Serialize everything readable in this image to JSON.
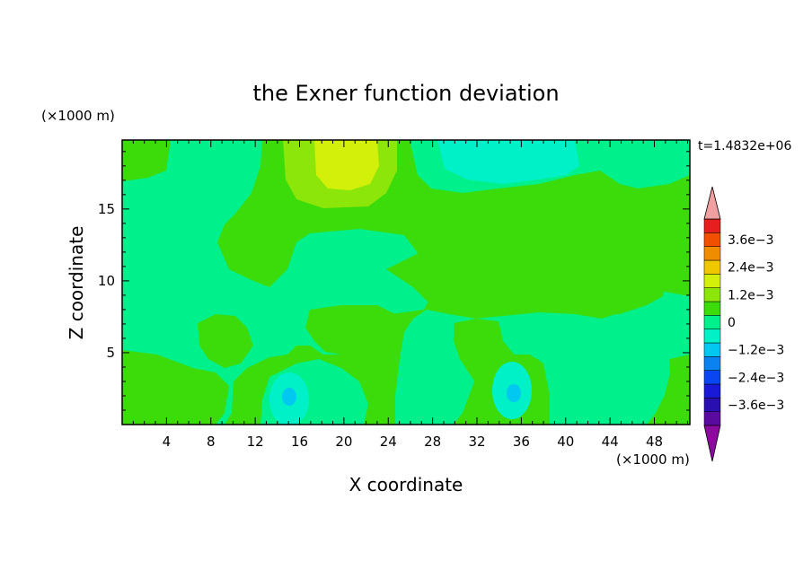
{
  "chart_data": {
    "type": "heatmap",
    "title": "the Exner function deviation",
    "xlabel": "X coordinate",
    "ylabel": "Z coordinate",
    "x_unit": "(×1000 m)",
    "y_unit": "(×1000 m)",
    "time_label": "t=1.4832e+06",
    "xlim": [
      0,
      51.2
    ],
    "ylim": [
      0,
      19.8
    ],
    "x_ticks": [
      4,
      8,
      12,
      16,
      20,
      24,
      28,
      32,
      36,
      40,
      44,
      48
    ],
    "y_ticks": [
      5,
      10,
      15
    ],
    "colorbar": {
      "labels": [
        "3.6e−3",
        "2.4e−3",
        "1.2e−3",
        "0",
        "−1.2e−3",
        "−2.4e−3",
        "−3.6e−3"
      ],
      "levels": [
        -0.0042,
        -0.0036,
        -0.003,
        -0.0024,
        -0.0018,
        -0.0012,
        -0.0006,
        0,
        0.0006,
        0.0012,
        0.0018,
        0.0024,
        0.003,
        0.0036,
        0.0042
      ],
      "colors": [
        "#5a0a9e",
        "#2a0fb0",
        "#1a1ad6",
        "#0a46f0",
        "#0a82f0",
        "#00c8f0",
        "#00f0c8",
        "#00f08c",
        "#3cdc0a",
        "#8ce60a",
        "#d2f00a",
        "#f0c800",
        "#f08c00",
        "#f05000",
        "#e61e1e"
      ],
      "under_color": "#8c0aa0",
      "over_color": "#f0a0a0"
    },
    "field_description_regions": [
      {
        "x": [
          0,
          4
        ],
        "z": [
          17,
          19.8
        ],
        "value": 0.0003
      },
      {
        "x": [
          10,
          24
        ],
        "z": [
          15,
          19.8
        ],
        "value": 0.0005
      },
      {
        "x": [
          17,
          22
        ],
        "z": [
          16.5,
          19.8
        ],
        "value": 0.0014
      },
      {
        "x": [
          27,
          38
        ],
        "z": [
          16.5,
          19.8
        ],
        "value": -0.0004
      },
      {
        "x": [
          44,
          51.2
        ],
        "z": [
          17,
          19.8
        ],
        "value": 0.0003
      },
      {
        "x": [
          14,
          16
        ],
        "z": [
          1,
          3
        ],
        "value": -0.0008
      },
      {
        "x": [
          33,
          36
        ],
        "z": [
          1,
          3
        ],
        "value": -0.0008
      }
    ]
  }
}
